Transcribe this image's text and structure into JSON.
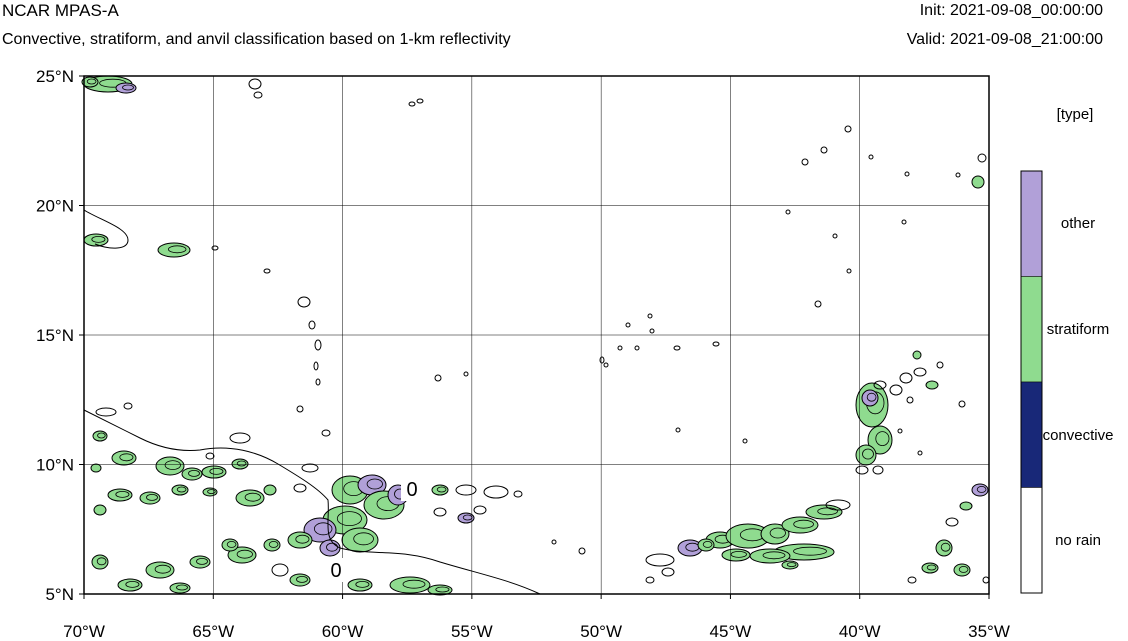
{
  "header": {
    "title": "NCAR MPAS-A",
    "subtitle": "Convective, stratiform, and anvil classification based on 1-km reflectivity",
    "init": "Init: 2021-09-08_00:00:00",
    "valid": "Valid: 2021-09-08_21:00:00"
  },
  "map": {
    "lon_range": [
      -70,
      -35
    ],
    "lat_range": [
      5,
      25
    ],
    "lon_ticks": [
      {
        "value": -70,
        "label": "70°W"
      },
      {
        "value": -65,
        "label": "65°W"
      },
      {
        "value": -60,
        "label": "60°W"
      },
      {
        "value": -55,
        "label": "55°W"
      },
      {
        "value": -50,
        "label": "50°W"
      },
      {
        "value": -45,
        "label": "45°W"
      },
      {
        "value": -40,
        "label": "40°W"
      },
      {
        "value": -35,
        "label": "35°W"
      }
    ],
    "lat_ticks": [
      {
        "value": 25,
        "label": "25°N"
      },
      {
        "value": 20,
        "label": "20°N"
      },
      {
        "value": 15,
        "label": "15°N"
      },
      {
        "value": 10,
        "label": "10°N"
      },
      {
        "value": 5,
        "label": "5°N"
      }
    ],
    "contour_labels": [
      "0",
      "0"
    ],
    "grid": true
  },
  "legend": {
    "title": "[type]",
    "items": [
      {
        "label": "other",
        "color": "#b1a0d8"
      },
      {
        "label": "stratiform",
        "color": "#8fdb8f"
      },
      {
        "label": "convective",
        "color": "#182878"
      },
      {
        "label": "no rain",
        "color": "#ffffff"
      }
    ]
  },
  "colors": {
    "stratiform": "#8fdb8f",
    "other": "#b1a0d8",
    "convective": "#182878"
  }
}
